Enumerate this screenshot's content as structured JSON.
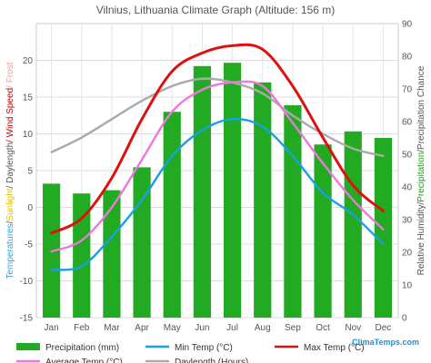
{
  "chart_data": {
    "type": "bar",
    "title": "Vilnius, Lithuania Climate Graph (Altitude: 156 m)",
    "categories": [
      "Jan",
      "Feb",
      "Mar",
      "Apr",
      "May",
      "Jun",
      "Jul",
      "Aug",
      "Sep",
      "Oct",
      "Nov",
      "Dec"
    ],
    "left_axis": {
      "label_parts": [
        {
          "text": "Temperatures",
          "color": "#2aa8e0"
        },
        {
          "text": "/",
          "color": "#555555"
        },
        {
          "text": "Sunlight",
          "color": "#e8c000"
        },
        {
          "text": "/ Daylength",
          "color": "#555555"
        },
        {
          "text": "/ Wind Speed",
          "color": "#cc0000"
        },
        {
          "text": "/ Frost",
          "color": "#ff9999"
        }
      ],
      "ylim": [
        -15,
        25
      ],
      "ticks": [
        -15,
        -10,
        -5,
        0,
        5,
        10,
        15,
        20
      ]
    },
    "right_axis": {
      "label_parts": [
        {
          "text": "Relative Humidity/",
          "color": "#555555"
        },
        {
          "text": "Precipitation",
          "color": "#1aa01a"
        },
        {
          "text": "/Precipitation Chance",
          "color": "#555555"
        }
      ],
      "ylim": [
        0,
        90
      ],
      "ticks": [
        0,
        10,
        20,
        30,
        40,
        50,
        60,
        70,
        80,
        90
      ]
    },
    "grid": true,
    "series": [
      {
        "name": "Precipitation (mm)",
        "kind": "bar",
        "axis": "right",
        "color": "#22aa22",
        "values": [
          41,
          38,
          39,
          46,
          63,
          77,
          78,
          72,
          65,
          53,
          57,
          55
        ]
      },
      {
        "name": "Min Temp (°C)",
        "kind": "line",
        "axis": "left",
        "color": "#1aa0e0",
        "values": [
          -8.5,
          -8,
          -4,
          1,
          7,
          10.5,
          12,
          11,
          7,
          2,
          -1,
          -5
        ]
      },
      {
        "name": "Max Temp (°C)",
        "kind": "line",
        "axis": "left",
        "color": "#dd1111",
        "values": [
          -3.5,
          -1.5,
          4,
          12,
          18.5,
          21,
          22,
          21.5,
          16.5,
          9.5,
          3,
          -0.5
        ]
      },
      {
        "name": "Average Temp (°C)",
        "kind": "line",
        "axis": "left",
        "color": "#ee77dd",
        "values": [
          -6,
          -4.5,
          0,
          6.5,
          13,
          16,
          17,
          16.5,
          11.5,
          6,
          1,
          -3
        ]
      },
      {
        "name": "Daylength (Hours)",
        "kind": "line",
        "axis": "left",
        "color": "#aaaaaa",
        "values": [
          7.5,
          9.5,
          12,
          14.5,
          16.5,
          17.5,
          17,
          15.5,
          12.5,
          10,
          8,
          7
        ]
      }
    ],
    "legend": [
      {
        "label": "Precipitation (mm)",
        "color": "#22aa22",
        "kind": "bar"
      },
      {
        "label": "Min Temp (°C)",
        "color": "#1aa0e0",
        "kind": "line"
      },
      {
        "label": "Max Temp (°C)",
        "color": "#dd1111",
        "kind": "line"
      },
      {
        "label": "Average Temp (°C)",
        "color": "#ee77dd",
        "kind": "line"
      },
      {
        "label": "Daylength (Hours)",
        "color": "#aaaaaa",
        "kind": "line"
      }
    ],
    "legend_position": "bottom"
  },
  "brand": {
    "text": "ClimaTemps.com",
    "color": "#1e90d6"
  }
}
